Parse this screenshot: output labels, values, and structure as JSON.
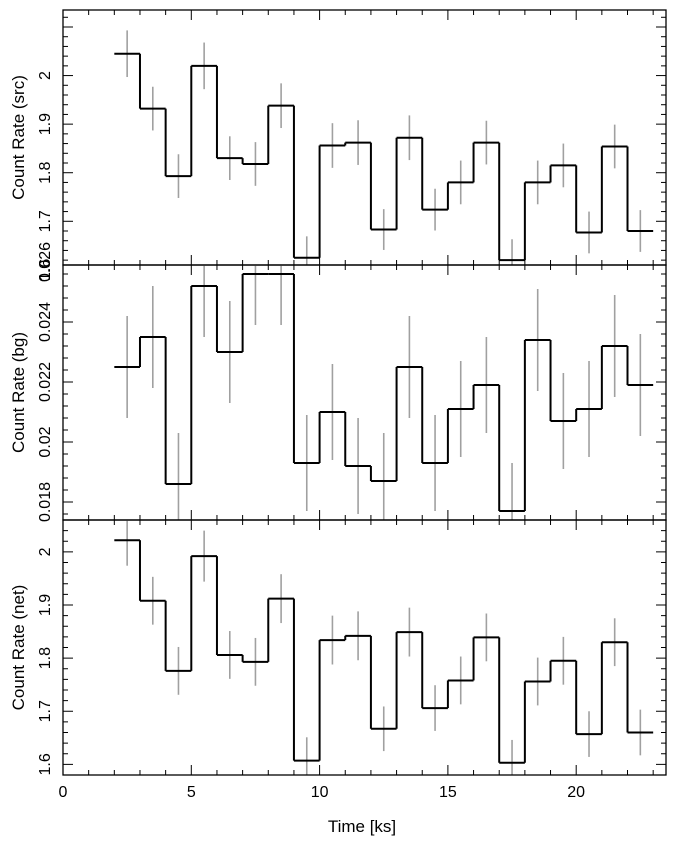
{
  "chart_data": {
    "type": "line",
    "style": "step-histogram-with-error-bars",
    "xlabel": "Time [ks]",
    "xlim": [
      0,
      23.5
    ],
    "x_ticks": [
      0,
      5,
      10,
      15,
      20
    ],
    "x": [
      2.5,
      3.5,
      4.5,
      5.5,
      6.5,
      7.5,
      8.5,
      9.5,
      10.5,
      11.5,
      12.5,
      13.5,
      14.5,
      15.5,
      16.5,
      17.5,
      18.5,
      19.5,
      20.5,
      21.5,
      22.5
    ],
    "bin_width": 1,
    "colors": {
      "step": "#000000",
      "error_bar": "#a0a0a0"
    },
    "panels": [
      {
        "ylabel": "Count Rate (src)",
        "ylim": [
          1.61,
          2.135
        ],
        "y_ticks": [
          1.6,
          1.7,
          1.8,
          1.9,
          2.0
        ],
        "y_tick_labels": [
          "1.6",
          "1.7",
          "1.8",
          "1.9",
          "2"
        ],
        "values": [
          2.045,
          1.932,
          1.793,
          2.02,
          1.83,
          1.818,
          1.938,
          1.625,
          1.856,
          1.862,
          1.683,
          1.872,
          1.724,
          1.78,
          1.862,
          1.62,
          1.78,
          1.815,
          1.677,
          1.854,
          1.68
        ],
        "errors": [
          0.048,
          0.045,
          0.045,
          0.048,
          0.045,
          0.045,
          0.046,
          0.044,
          0.046,
          0.046,
          0.042,
          0.046,
          0.043,
          0.045,
          0.045,
          0.043,
          0.045,
          0.045,
          0.043,
          0.045,
          0.043
        ]
      },
      {
        "ylabel": "Count Rate (bg)",
        "ylim": [
          0.0174,
          0.0259
        ],
        "y_ticks": [
          0.018,
          0.02,
          0.022,
          0.024,
          0.026
        ],
        "y_tick_labels": [
          "0.018",
          "0.02",
          "0.022",
          "0.024",
          "0.026"
        ],
        "values": [
          0.0225,
          0.0235,
          0.0186,
          0.0252,
          0.023,
          0.0256,
          0.0256,
          0.0193,
          0.021,
          0.0192,
          0.0187,
          0.0225,
          0.0193,
          0.0211,
          0.0219,
          0.0177,
          0.0234,
          0.0207,
          0.0211,
          0.0232,
          0.0219
        ],
        "errors": [
          0.0017,
          0.0017,
          0.0017,
          0.0017,
          0.0017,
          0.0017,
          0.0017,
          0.0016,
          0.0016,
          0.0016,
          0.0016,
          0.0017,
          0.0016,
          0.0016,
          0.0016,
          0.0016,
          0.0017,
          0.0016,
          0.0016,
          0.0017,
          0.0017
        ]
      },
      {
        "ylabel": "Count Rate (net)",
        "ylim": [
          1.58,
          2.06
        ],
        "y_ticks": [
          1.6,
          1.7,
          1.8,
          1.9,
          2.0
        ],
        "y_tick_labels": [
          "1.6",
          "1.7",
          "1.8",
          "1.9",
          "2"
        ],
        "values": [
          2.022,
          1.908,
          1.776,
          1.992,
          1.806,
          1.793,
          1.912,
          1.607,
          1.834,
          1.842,
          1.667,
          1.849,
          1.706,
          1.758,
          1.839,
          1.603,
          1.756,
          1.795,
          1.657,
          1.83,
          1.66
        ],
        "errors": [
          0.048,
          0.045,
          0.045,
          0.048,
          0.045,
          0.045,
          0.046,
          0.044,
          0.046,
          0.046,
          0.042,
          0.046,
          0.043,
          0.045,
          0.045,
          0.043,
          0.045,
          0.045,
          0.043,
          0.045,
          0.043
        ]
      }
    ]
  }
}
